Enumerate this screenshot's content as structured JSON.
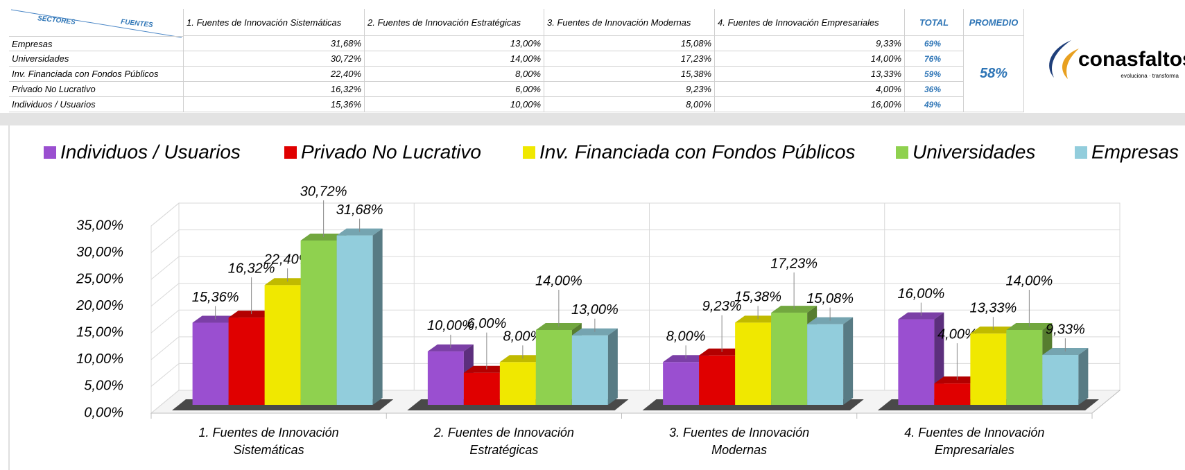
{
  "table": {
    "corner_left": "SECTORES",
    "corner_right": "FUENTES",
    "columns": [
      "1. Fuentes de Innovación Sistemáticas",
      "2. Fuentes de Innovación Estratégicas",
      "3. Fuentes de Innovación Modernas",
      "4. Fuentes de Innovación Empresariales",
      "TOTAL",
      "PROMEDIO"
    ],
    "rows": [
      {
        "label": "Empresas",
        "values": [
          "31,68%",
          "13,00%",
          "15,08%",
          "9,33%"
        ],
        "total": "69%"
      },
      {
        "label": "Universidades",
        "values": [
          "30,72%",
          "14,00%",
          "17,23%",
          "14,00%"
        ],
        "total": "76%"
      },
      {
        "label": "Inv. Financiada con Fondos Públicos",
        "values": [
          "22,40%",
          "8,00%",
          "15,38%",
          "13,33%"
        ],
        "total": "59%"
      },
      {
        "label": "Privado No Lucrativo",
        "values": [
          "16,32%",
          "6,00%",
          "9,23%",
          "4,00%"
        ],
        "total": "36%"
      },
      {
        "label": "Individuos / Usuarios",
        "values": [
          "15,36%",
          "10,00%",
          "8,00%",
          "16,00%"
        ],
        "total": "49%"
      }
    ],
    "average": "58%"
  },
  "logo": {
    "name": "conasfaltos",
    "tagline": "evoluciona · transforma"
  },
  "chart_data": {
    "type": "bar",
    "categories": [
      "1. Fuentes de Innovación Sistemáticas",
      "2. Fuentes de Innovación Estratégicas",
      "3. Fuentes de Innovación Modernas",
      "4. Fuentes de Innovación Empresariales"
    ],
    "series": [
      {
        "name": "Individuos / Usuarios",
        "color": "#9a4fd0",
        "values": [
          15.36,
          10,
          8,
          16
        ],
        "value_labels": [
          "15,36%",
          "10,00%",
          "8,00%",
          "16,00%"
        ]
      },
      {
        "name": "Privado No Lucrativo",
        "color": "#e00000",
        "values": [
          16.32,
          6,
          9.23,
          4
        ],
        "value_labels": [
          "16,32%",
          "6,00%",
          "9,23%",
          "4,00%"
        ]
      },
      {
        "name": "Inv. Financiada con Fondos Públicos",
        "color": "#f0e800",
        "values": [
          22.4,
          8,
          15.38,
          13.33
        ],
        "value_labels": [
          "22,40%",
          "8,00%",
          "15,38%",
          "13,33%"
        ]
      },
      {
        "name": "Universidades",
        "color": "#8fd14f",
        "values": [
          30.72,
          14,
          17.23,
          14
        ],
        "value_labels": [
          "30,72%",
          "14,00%",
          "17,23%",
          "14,00%"
        ]
      },
      {
        "name": "Empresas",
        "color": "#92cddc",
        "values": [
          31.68,
          13,
          15.08,
          9.33
        ],
        "value_labels": [
          "31,68%",
          "13,00%",
          "15,08%",
          "9,33%"
        ]
      }
    ],
    "ylim": [
      0,
      35
    ],
    "yticks": [
      {
        "value": 0,
        "label": "0,00%"
      },
      {
        "value": 5,
        "label": "5,00%"
      },
      {
        "value": 10,
        "label": "10,00%"
      },
      {
        "value": 15,
        "label": "15,00%"
      },
      {
        "value": 20,
        "label": "20,00%"
      },
      {
        "value": 25,
        "label": "25,00%"
      },
      {
        "value": 30,
        "label": "30,00%"
      },
      {
        "value": 35,
        "label": "35,00%"
      }
    ],
    "grid": true,
    "legend": "top"
  }
}
